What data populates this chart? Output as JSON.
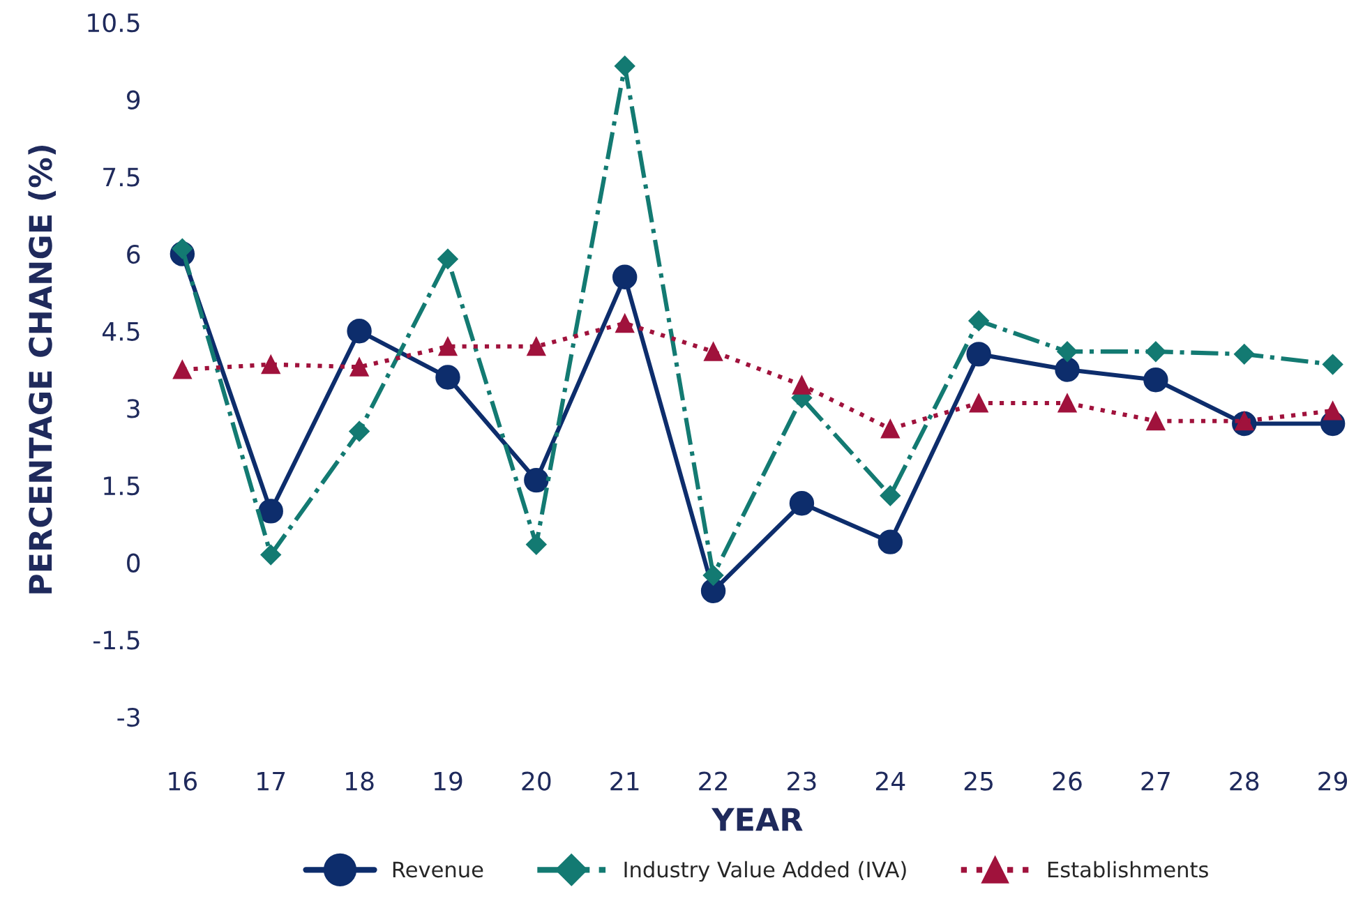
{
  "chart_data": {
    "type": "line",
    "xlabel": "YEAR",
    "ylabel": "PERCENTAGE CHANGE (%)",
    "categories": [
      "16",
      "17",
      "18",
      "19",
      "20",
      "21",
      "22",
      "23",
      "24",
      "25",
      "26",
      "27",
      "28",
      "29"
    ],
    "series": [
      {
        "name": "Revenue",
        "color": "#0d2d6c",
        "marker": "circle",
        "line_style": "solid",
        "values": [
          6.0,
          1.0,
          4.5,
          3.6,
          1.6,
          5.55,
          -0.55,
          1.15,
          0.4,
          4.05,
          3.75,
          3.55,
          2.7,
          2.7
        ]
      },
      {
        "name": "Industry Value Added (IVA)",
        "color": "#137a72",
        "marker": "diamond",
        "line_style": "dashdot",
        "values": [
          6.1,
          0.15,
          2.55,
          5.9,
          0.35,
          9.65,
          -0.25,
          3.2,
          1.3,
          4.7,
          4.1,
          4.1,
          4.05,
          3.85
        ]
      },
      {
        "name": "Establishments",
        "color": "#a0123c",
        "marker": "triangle",
        "line_style": "dotted",
        "values": [
          3.75,
          3.85,
          3.8,
          4.2,
          4.2,
          4.65,
          4.1,
          3.45,
          2.6,
          3.1,
          3.1,
          2.75,
          2.75,
          2.95
        ]
      }
    ],
    "ylim": [
      -3,
      10.5
    ],
    "yticks": [
      -3,
      -1.5,
      0,
      1.5,
      3,
      4.5,
      6,
      7.5,
      9,
      10.5
    ],
    "grid": false,
    "legend": "bottom"
  }
}
